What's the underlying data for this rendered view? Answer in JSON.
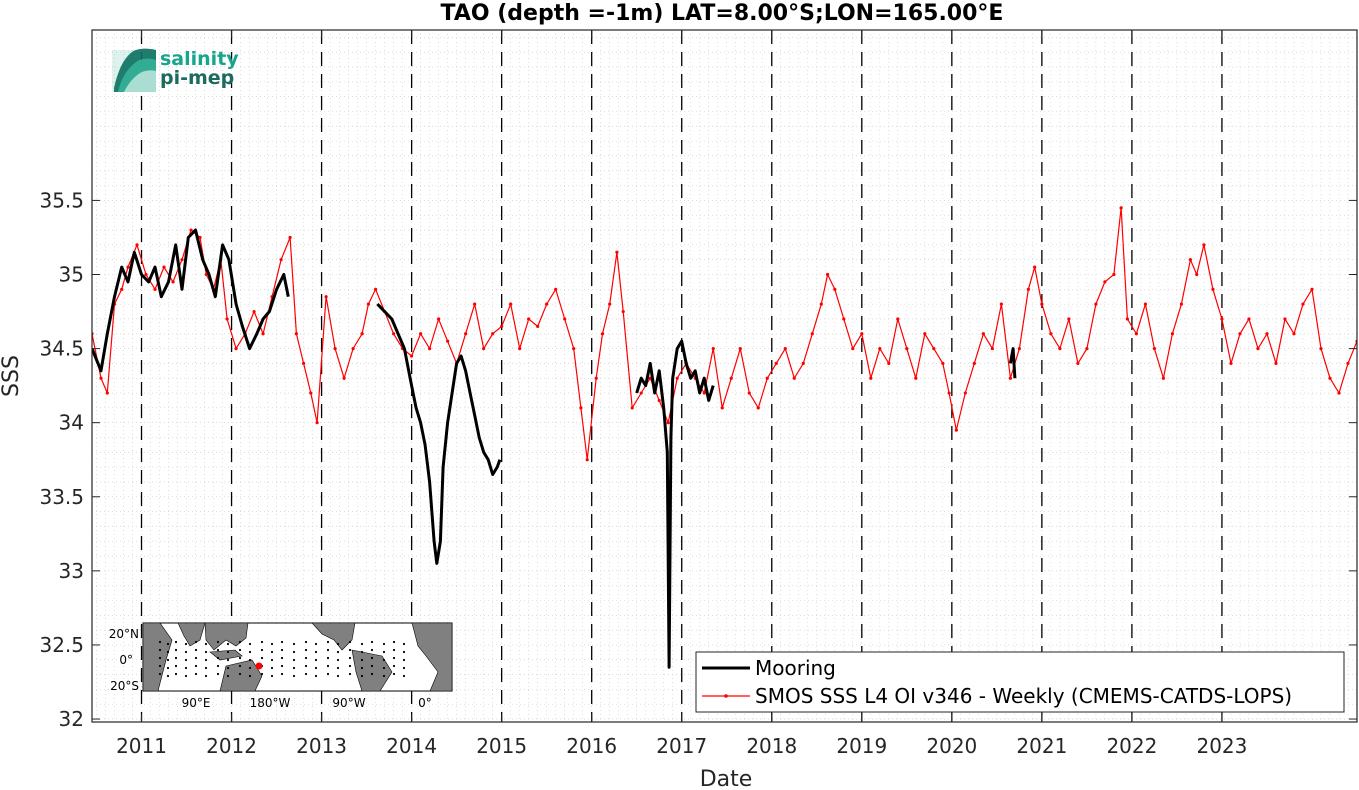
{
  "chart_data": {
    "type": "line",
    "title": "TAO (depth =-1m) LAT=8.00°S;LON=165.00°E",
    "xlabel": "Date",
    "ylabel": "SSS",
    "xlim": [
      2010.45,
      2024.5
    ],
    "ylim": [
      31.98,
      36.65
    ],
    "y_ticks": [
      32,
      32.5,
      33,
      33.5,
      34,
      34.5,
      35,
      35.5
    ],
    "y_tick_labels": [
      "32",
      "32.5",
      "33",
      "33.5",
      "34",
      "34.5",
      "35",
      "35.5"
    ],
    "x_ticks": [
      2011,
      2012,
      2013,
      2014,
      2015,
      2016,
      2017,
      2018,
      2019,
      2020,
      2021,
      2022,
      2023
    ],
    "x_tick_labels": [
      "2011",
      "2012",
      "2013",
      "2014",
      "2015",
      "2016",
      "2017",
      "2018",
      "2019",
      "2020",
      "2021",
      "2022",
      "2023"
    ],
    "year_boundary_lines": "dashed black vertical at each Jan 1",
    "grid": "dotted minor",
    "legend_position": "bottom-right",
    "series": [
      {
        "name": "Mooring",
        "color": "#000000",
        "style": "thick line",
        "segments": [
          {
            "x": [
              2010.45,
              2010.55,
              2010.62,
              2010.7,
              2010.78,
              2010.85,
              2010.92,
              2011.0,
              2011.08,
              2011.15,
              2011.22,
              2011.3,
              2011.38,
              2011.45,
              2011.52,
              2011.6,
              2011.68,
              2011.75,
              2011.82,
              2011.9,
              2011.97,
              2012.05,
              2012.12,
              2012.2,
              2012.28,
              2012.35,
              2012.42,
              2012.5,
              2012.58,
              2012.63
            ],
            "y": [
              34.5,
              34.35,
              34.6,
              34.85,
              35.05,
              34.95,
              35.15,
              35.0,
              34.95,
              35.05,
              34.85,
              34.95,
              35.2,
              34.9,
              35.25,
              35.3,
              35.1,
              35.0,
              34.85,
              35.2,
              35.1,
              34.8,
              34.65,
              34.5,
              34.6,
              34.7,
              34.75,
              34.9,
              35.0,
              34.85
            ]
          },
          {
            "x": [
              2013.62,
              2013.7,
              2013.78,
              2013.85,
              2013.92,
              2014.0,
              2014.05,
              2014.1,
              2014.15,
              2014.2,
              2014.25,
              2014.28,
              2014.32,
              2014.35,
              2014.4,
              2014.45,
              2014.5,
              2014.55,
              2014.6,
              2014.65,
              2014.7,
              2014.75,
              2014.8,
              2014.85,
              2014.9,
              2014.95,
              2014.98
            ],
            "y": [
              34.8,
              34.75,
              34.7,
              34.6,
              34.5,
              34.25,
              34.1,
              34.0,
              33.85,
              33.6,
              33.2,
              33.05,
              33.2,
              33.7,
              34.0,
              34.2,
              34.4,
              34.45,
              34.35,
              34.2,
              34.05,
              33.9,
              33.8,
              33.75,
              33.65,
              33.7,
              33.75
            ]
          },
          {
            "x": [
              2016.5,
              2016.55,
              2016.6,
              2016.65,
              2016.7,
              2016.75,
              2016.8,
              2016.84,
              2016.86,
              2016.88,
              2016.9,
              2016.95,
              2017.0,
              2017.05,
              2017.1,
              2017.15,
              2017.2,
              2017.25,
              2017.3,
              2017.35
            ],
            "y": [
              34.2,
              34.3,
              34.25,
              34.4,
              34.2,
              34.35,
              34.1,
              33.8,
              32.35,
              33.9,
              34.3,
              34.5,
              34.55,
              34.4,
              34.3,
              34.35,
              34.2,
              34.3,
              34.15,
              34.25
            ]
          },
          {
            "x": [
              2020.65,
              2020.68,
              2020.7
            ],
            "y": [
              34.4,
              34.5,
              34.3
            ]
          }
        ]
      },
      {
        "name": "SMOS SSS L4 OI v346 - Weekly (CMEMS-CATDS-LOPS)",
        "color": "#ff0000",
        "style": "thin line with dot markers",
        "x": [
          2010.45,
          2010.55,
          2010.62,
          2010.7,
          2010.78,
          2010.85,
          2010.95,
          2011.05,
          2011.15,
          2011.25,
          2011.35,
          2011.45,
          2011.55,
          2011.65,
          2011.72,
          2011.8,
          2011.88,
          2011.95,
          2012.05,
          2012.15,
          2012.25,
          2012.35,
          2012.45,
          2012.55,
          2012.65,
          2012.72,
          2012.8,
          2012.88,
          2012.95,
          2013.05,
          2013.15,
          2013.25,
          2013.35,
          2013.45,
          2013.52,
          2013.6,
          2013.7,
          2013.8,
          2013.9,
          2014.0,
          2014.1,
          2014.2,
          2014.3,
          2014.4,
          2014.5,
          2014.6,
          2014.7,
          2014.8,
          2014.9,
          2015.0,
          2015.1,
          2015.2,
          2015.3,
          2015.4,
          2015.5,
          2015.6,
          2015.7,
          2015.8,
          2015.88,
          2015.95,
          2016.05,
          2016.12,
          2016.2,
          2016.28,
          2016.35,
          2016.45,
          2016.55,
          2016.65,
          2016.75,
          2016.85,
          2016.95,
          2017.05,
          2017.15,
          2017.25,
          2017.35,
          2017.45,
          2017.55,
          2017.65,
          2017.75,
          2017.85,
          2017.95,
          2018.05,
          2018.15,
          2018.25,
          2018.35,
          2018.45,
          2018.55,
          2018.62,
          2018.7,
          2018.8,
          2018.9,
          2019.0,
          2019.1,
          2019.2,
          2019.3,
          2019.4,
          2019.5,
          2019.6,
          2019.7,
          2019.8,
          2019.9,
          2019.97,
          2020.05,
          2020.15,
          2020.25,
          2020.35,
          2020.45,
          2020.55,
          2020.65,
          2020.75,
          2020.85,
          2020.92,
          2021.0,
          2021.1,
          2021.2,
          2021.3,
          2021.4,
          2021.5,
          2021.6,
          2021.7,
          2021.8,
          2021.88,
          2021.95,
          2022.05,
          2022.15,
          2022.25,
          2022.35,
          2022.45,
          2022.55,
          2022.65,
          2022.72,
          2022.8,
          2022.9,
          2023.0,
          2023.1,
          2023.2,
          2023.3,
          2023.4,
          2023.5,
          2023.6,
          2023.7,
          2023.8,
          2023.9,
          2024.0,
          2024.1,
          2024.2,
          2024.3,
          2024.4,
          2024.5
        ],
        "y": [
          34.6,
          34.3,
          34.2,
          34.8,
          34.9,
          35.05,
          35.2,
          35.0,
          34.9,
          35.05,
          34.95,
          35.1,
          35.3,
          35.25,
          35.0,
          34.9,
          35.1,
          34.7,
          34.5,
          34.6,
          34.75,
          34.6,
          34.85,
          35.1,
          35.25,
          34.6,
          34.4,
          34.2,
          34.0,
          34.85,
          34.5,
          34.3,
          34.5,
          34.6,
          34.8,
          34.9,
          34.75,
          34.6,
          34.5,
          34.45,
          34.6,
          34.5,
          34.7,
          34.55,
          34.4,
          34.6,
          34.8,
          34.5,
          34.6,
          34.65,
          34.8,
          34.5,
          34.7,
          34.65,
          34.8,
          34.9,
          34.7,
          34.5,
          34.1,
          33.75,
          34.3,
          34.6,
          34.8,
          35.15,
          34.75,
          34.1,
          34.2,
          34.3,
          34.15,
          34.0,
          34.3,
          34.4,
          34.3,
          34.2,
          34.5,
          34.1,
          34.3,
          34.5,
          34.2,
          34.1,
          34.3,
          34.4,
          34.5,
          34.3,
          34.4,
          34.6,
          34.8,
          35.0,
          34.9,
          34.7,
          34.5,
          34.6,
          34.3,
          34.5,
          34.4,
          34.7,
          34.5,
          34.3,
          34.6,
          34.5,
          34.4,
          34.2,
          33.95,
          34.2,
          34.4,
          34.6,
          34.5,
          34.8,
          34.3,
          34.5,
          34.9,
          35.05,
          34.8,
          34.6,
          34.5,
          34.7,
          34.4,
          34.5,
          34.8,
          34.95,
          35.0,
          35.45,
          34.7,
          34.6,
          34.8,
          34.5,
          34.3,
          34.6,
          34.8,
          35.1,
          35.0,
          35.2,
          34.9,
          34.7,
          34.4,
          34.6,
          34.7,
          34.5,
          34.6,
          34.4,
          34.7,
          34.6,
          34.8,
          34.9,
          34.5,
          34.3,
          34.2,
          34.4,
          34.55
        ]
      }
    ],
    "logo": {
      "line1": "salinity",
      "line2": "pi-mep",
      "color1": "#17a58c",
      "color2": "#1d6b5c"
    },
    "inset_map": {
      "lat_labels": [
        "20°N",
        "0°",
        "20°S"
      ],
      "lon_labels": [
        "90°E",
        "180°W",
        "90°W",
        "0°"
      ],
      "land_color": "#808080",
      "marker_color": "#ff0000"
    }
  }
}
